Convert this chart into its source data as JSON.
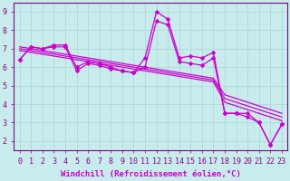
{
  "background_color": "#c8ecec",
  "grid_color": "#b0d8d8",
  "line_color": "#cc00cc",
  "marker": "D",
  "marker_size": 2.5,
  "line_width": 0.9,
  "xlabel": "Windchill (Refroidissement éolien,°C)",
  "xlabel_fontsize": 6.5,
  "tick_fontsize": 6,
  "xlim": [
    -0.5,
    23.5
  ],
  "ylim": [
    1.5,
    9.5
  ],
  "yticks": [
    2,
    3,
    4,
    5,
    6,
    7,
    8,
    9
  ],
  "xticks": [
    0,
    1,
    2,
    3,
    4,
    5,
    6,
    7,
    8,
    9,
    10,
    11,
    12,
    13,
    14,
    15,
    16,
    17,
    18,
    19,
    20,
    21,
    22,
    23
  ],
  "series": [
    [
      6.4,
      7.1,
      7.0,
      7.1,
      7.1,
      5.8,
      6.2,
      6.1,
      5.9,
      5.8,
      5.7,
      6.5,
      9.0,
      8.6,
      6.5,
      6.6,
      6.5,
      6.8,
      3.5,
      3.5,
      3.5,
      3.0,
      1.8,
      2.9
    ],
    [
      6.4,
      7.1,
      7.0,
      7.2,
      7.2,
      6.0,
      6.3,
      6.2,
      6.0,
      5.8,
      5.7,
      6.0,
      8.5,
      8.3,
      6.3,
      6.2,
      6.1,
      6.5,
      3.5,
      3.5,
      3.3,
      3.0,
      1.8,
      2.9
    ],
    [
      7.1,
      7.0,
      6.9,
      6.8,
      6.7,
      6.6,
      6.5,
      6.4,
      6.3,
      6.2,
      6.1,
      6.0,
      5.9,
      5.8,
      5.7,
      5.6,
      5.5,
      5.4,
      4.5,
      4.3,
      4.1,
      3.9,
      3.7,
      3.5
    ],
    [
      7.0,
      6.9,
      6.8,
      6.7,
      6.6,
      6.5,
      6.4,
      6.3,
      6.2,
      6.1,
      6.0,
      5.9,
      5.8,
      5.7,
      5.6,
      5.5,
      5.4,
      5.3,
      4.3,
      4.1,
      3.9,
      3.7,
      3.5,
      3.3
    ],
    [
      6.9,
      6.8,
      6.7,
      6.6,
      6.5,
      6.4,
      6.3,
      6.2,
      6.1,
      6.0,
      5.9,
      5.8,
      5.7,
      5.6,
      5.5,
      5.4,
      5.3,
      5.2,
      4.1,
      3.9,
      3.7,
      3.5,
      3.3,
      3.1
    ]
  ]
}
